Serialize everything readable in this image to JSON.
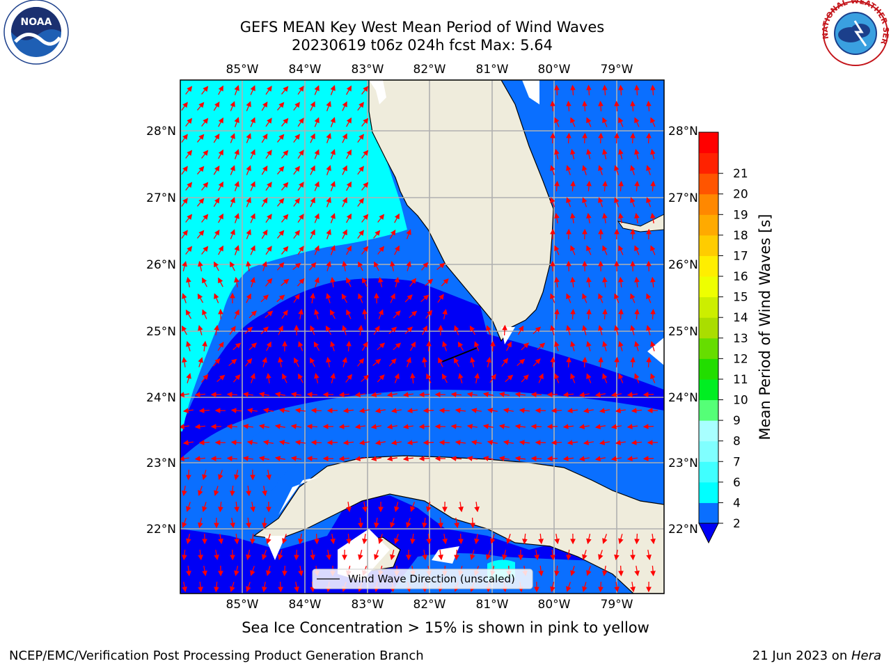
{
  "title": {
    "line1": "GEFS MEAN Key West Mean Period of Wind Waves",
    "line2": "20230619 t06z 024h fcst   Max: 5.64"
  },
  "logos": {
    "left_text": "NOAA",
    "right_text": "NATIONAL WEATHER SERVICE"
  },
  "map": {
    "lon_labels": [
      "85°W",
      "84°W",
      "83°W",
      "82°W",
      "81°W",
      "80°W",
      "79°W"
    ],
    "lat_labels": [
      "28°N",
      "27°N",
      "26°N",
      "25°N",
      "24°N",
      "23°N",
      "22°N"
    ],
    "legend_label": "Wind Wave Direction (unscaled)",
    "colors": {
      "land": "#efecdc",
      "p2_4": "#0a6fff",
      "p0_2": "#0000f5",
      "p4_6": "#00ffff",
      "arrow": "#ff0000",
      "grid": "#b0b0b0"
    }
  },
  "colorbar": {
    "label": "Mean Period of Wind Waves [s]",
    "ticks": [
      "2",
      "4",
      "6",
      "7",
      "8",
      "9",
      "10",
      "11",
      "12",
      "13",
      "14",
      "15",
      "16",
      "17",
      "18",
      "19",
      "20",
      "21"
    ],
    "colors": [
      "#0a6fff",
      "#00ffff",
      "#40ffff",
      "#80ffff",
      "#a8ffff",
      "#55ff77",
      "#00ee22",
      "#22dd00",
      "#66dd00",
      "#aadd00",
      "#ccee00",
      "#eeff00",
      "#ffee00",
      "#ffcc00",
      "#ffaa00",
      "#ff8800",
      "#ff5500",
      "#ff2200",
      "#ff0000"
    ]
  },
  "caption": "Sea Ice Concentration > 15% is shown in pink to yellow",
  "footer": {
    "left": "NCEP/EMC/Verification Post Processing Product Generation Branch",
    "right_prefix": "21 Jun 2023 on ",
    "right_host": "Hera"
  }
}
